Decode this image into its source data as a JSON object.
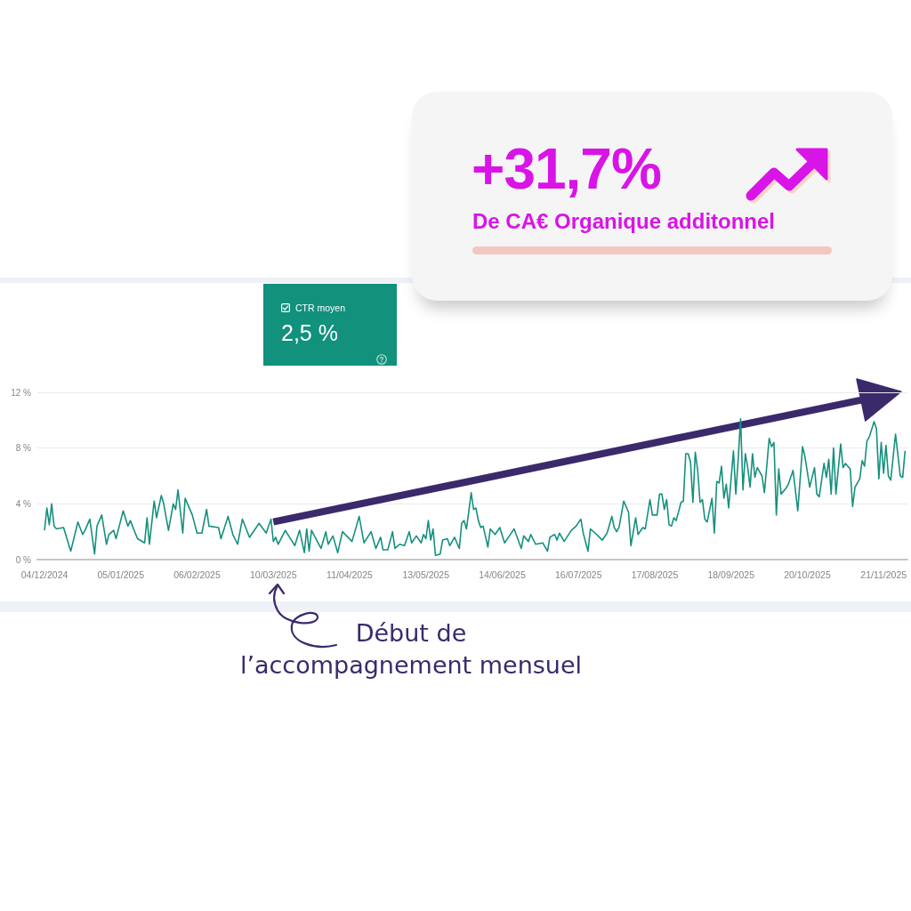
{
  "chart_data": [
    {
      "type": "other",
      "title": "+31,7%",
      "subtitle": "De CA€ Organique additonnel"
    },
    {
      "type": "line",
      "title": "CTR moyen",
      "annotations": [
        "2,5 %",
        "Début de\nl’accompagnement mensuel"
      ],
      "x": [
        "2024-12-04",
        "2024-12-05",
        "2024-12-06",
        "2024-12-07",
        "2024-12-08",
        "2024-12-09",
        "2024-12-12",
        "2024-12-15",
        "2024-12-18",
        "2024-12-20",
        "2024-12-21",
        "2024-12-23",
        "2024-12-25",
        "2024-12-26",
        "2024-12-28",
        "2024-12-30",
        "2024-12-31",
        "2025-01-02",
        "2025-01-03",
        "2025-01-06",
        "2025-01-08",
        "2025-01-09",
        "2025-01-12",
        "2025-01-15",
        "2025-01-16",
        "2025-01-17",
        "2025-01-19",
        "2025-01-20",
        "2025-01-22",
        "2025-01-23",
        "2025-01-25",
        "2025-01-27",
        "2025-01-28",
        "2025-01-29",
        "2025-01-31",
        "2025-02-01",
        "2025-02-04",
        "2025-02-06",
        "2025-02-08",
        "2025-02-10",
        "2025-02-11",
        "2025-02-15",
        "2025-02-16",
        "2025-02-19",
        "2025-02-21",
        "2025-02-23",
        "2025-02-25",
        "2025-02-28",
        "2025-03-04",
        "2025-03-07",
        "2025-03-09",
        "2025-03-10",
        "2025-03-11",
        "2025-03-12",
        "2025-03-15",
        "2025-03-19",
        "2025-03-21",
        "2025-03-23",
        "2025-03-24",
        "2025-03-25",
        "2025-03-26",
        "2025-03-30",
        "2025-04-01",
        "2025-04-02",
        "2025-04-04",
        "2025-04-06",
        "2025-04-08",
        "2025-04-12",
        "2025-04-15",
        "2025-04-17",
        "2025-04-20",
        "2025-04-22",
        "2025-04-24",
        "2025-04-25",
        "2025-04-27",
        "2025-04-29",
        "2025-04-30",
        "2025-05-02",
        "2025-05-04",
        "2025-05-06",
        "2025-05-07",
        "2025-05-09",
        "2025-05-11",
        "2025-05-12",
        "2025-05-13",
        "2025-05-14",
        "2025-05-15",
        "2025-05-16",
        "2025-05-17",
        "2025-05-19",
        "2025-05-20",
        "2025-05-22",
        "2025-05-23",
        "2025-05-25",
        "2025-05-27",
        "2025-05-28",
        "2025-05-29",
        "2025-05-30",
        "2025-06-01",
        "2025-06-02",
        "2025-06-03",
        "2025-06-04",
        "2025-06-05",
        "2025-06-06",
        "2025-06-08",
        "2025-06-09",
        "2025-06-11",
        "2025-06-13",
        "2025-06-15",
        "2025-06-17",
        "2025-06-19",
        "2025-06-22",
        "2025-06-23",
        "2025-06-25",
        "2025-06-26",
        "2025-06-28",
        "2025-07-01",
        "2025-07-03",
        "2025-07-04",
        "2025-07-06",
        "2025-07-07",
        "2025-07-08",
        "2025-07-10",
        "2025-07-13",
        "2025-07-15",
        "2025-07-17",
        "2025-07-18",
        "2025-07-20",
        "2025-07-21",
        "2025-07-23",
        "2025-07-26",
        "2025-07-28",
        "2025-07-30",
        "2025-07-31",
        "2025-08-01",
        "2025-08-02",
        "2025-08-04",
        "2025-08-06",
        "2025-08-07",
        "2025-08-09",
        "2025-08-10",
        "2025-08-12",
        "2025-08-13",
        "2025-08-15",
        "2025-08-16",
        "2025-08-18",
        "2025-08-19",
        "2025-08-20",
        "2025-08-21",
        "2025-08-22",
        "2025-08-23",
        "2025-08-24",
        "2025-08-25",
        "2025-08-26",
        "2025-08-28",
        "2025-08-29",
        "2025-08-30",
        "2025-08-31",
        "2025-09-01",
        "2025-09-02",
        "2025-09-03",
        "2025-09-04",
        "2025-09-05",
        "2025-09-06",
        "2025-09-07",
        "2025-09-08",
        "2025-09-10",
        "2025-09-11",
        "2025-09-12",
        "2025-09-13",
        "2025-09-14",
        "2025-09-15",
        "2025-09-16",
        "2025-09-17",
        "2025-09-19",
        "2025-09-20",
        "2025-09-21",
        "2025-09-22",
        "2025-09-23",
        "2025-09-24",
        "2025-09-25",
        "2025-09-26",
        "2025-09-27",
        "2025-09-28",
        "2025-09-29",
        "2025-10-01",
        "2025-10-02",
        "2025-10-04",
        "2025-10-05",
        "2025-10-06",
        "2025-10-07",
        "2025-10-08",
        "2025-10-09",
        "2025-10-11",
        "2025-10-12",
        "2025-10-14",
        "2025-10-16",
        "2025-10-18",
        "2025-10-19",
        "2025-10-21",
        "2025-10-23",
        "2025-10-24",
        "2025-10-25",
        "2025-10-27",
        "2025-10-28",
        "2025-10-29",
        "2025-10-30",
        "2025-10-31",
        "2025-11-01",
        "2025-11-03",
        "2025-11-04",
        "2025-11-05",
        "2025-11-07",
        "2025-11-08",
        "2025-11-09",
        "2025-11-11",
        "2025-11-12",
        "2025-11-13",
        "2025-11-14",
        "2025-11-15",
        "2025-11-17",
        "2025-11-18",
        "2025-11-19",
        "2025-11-20",
        "2025-11-21",
        "2025-11-22",
        "2025-11-23",
        "2025-11-24",
        "2025-11-26",
        "2025-11-28",
        "2025-11-29",
        "2025-11-30"
      ],
      "series": [
        {
          "color": "#15907e",
          "values": [
            2.1,
            3.7,
            2.5,
            4.0,
            2.4,
            2.2,
            2.3,
            0.6,
            2.7,
            1.8,
            2.1,
            2.9,
            0.4,
            2.4,
            3.2,
            1.1,
            1.8,
            2.1,
            1.5,
            3.5,
            2.4,
            2.8,
            1.5,
            1.2,
            3.0,
            1.1,
            4.2,
            3.0,
            4.6,
            4.0,
            2.1,
            4.0,
            3.6,
            5.0,
            1.9,
            4.4,
            3.2,
            1.9,
            1.9,
            3.6,
            2.4,
            2.3,
            1.5,
            3.1,
            1.8,
            1.1,
            2.9,
            1.6,
            2.6,
            1.9,
            2.9,
            1.3,
            1.6,
            1.1,
            2.1,
            1.0,
            2.1,
            0.5,
            2.2,
            0.6,
            2.1,
            0.8,
            2.0,
            1.1,
            1.7,
            0.5,
            2.0,
            1.3,
            3.1,
            1.2,
            2.0,
            0.8,
            1.6,
            0.7,
            0.7,
            2.0,
            0.8,
            1.1,
            1.0,
            2.0,
            1.2,
            1.7,
            1.2,
            1.8,
            1.5,
            2.8,
            1.4,
            2.2,
            0.3,
            0.4,
            1.4,
            1.5,
            1.0,
            1.6,
            0.8,
            2.6,
            2.8,
            2.2,
            4.8,
            3.6,
            3.7,
            2.8,
            2.3,
            2.4,
            0.9,
            2.2,
            1.8,
            2.3,
            1.2,
            1.7,
            2.2,
            0.8,
            1.7,
            1.3,
            1.8,
            1.1,
            1.2,
            0.6,
            1.6,
            1.8,
            1.4,
            1.9,
            1.3,
            2.1,
            2.4,
            2.9,
            1.9,
            0.6,
            2.2,
            1.9,
            1.4,
            1.9,
            3.1,
            2.3,
            2.0,
            2.3,
            4.2,
            3.4,
            1.0,
            3.0,
            1.8,
            2.3,
            2.2,
            4.3,
            3.2,
            3.2,
            4.7,
            4.7,
            3.6,
            4.3,
            2.5,
            2.4,
            3.0,
            2.8,
            4.1,
            4.2,
            7.6,
            7.6,
            7.0,
            4.1,
            7.7,
            6.4,
            4.1,
            4.3,
            2.9,
            2.7,
            4.4,
            1.9,
            5.6,
            5.5,
            6.7,
            4.4,
            5.4,
            3.7,
            7.8,
            4.7,
            7.2,
            10.1,
            5.0,
            7.6,
            6.6,
            5.2,
            7.6,
            5.9,
            6.6,
            6.0,
            4.8,
            8.7,
            8.1,
            8.4,
            3.2,
            6.5,
            4.7,
            5.1,
            5.4,
            6.4,
            3.5,
            8.1,
            7.4,
            5.2,
            6.6,
            4.7,
            4.5,
            6.9,
            5.9,
            7.2,
            4.7,
            8.0,
            4.7,
            8.3,
            6.6,
            6.9,
            6.5,
            3.8,
            5.2,
            5.8,
            7.1,
            6.7,
            8.5,
            8.8,
            9.9,
            9.4,
            5.8,
            8.4,
            6.2,
            8.2,
            6.0,
            5.7,
            9.0,
            6.0,
            5.9,
            7.8
          ]
        },
        {
          "color": "#3a2a6c",
          "x": [
            "2025-03-10",
            "2025-11-13"
          ],
          "values": [
            2.7,
            11.5
          ]
        }
      ],
      "xlim": [
        "2024-12-01",
        "2025-12-01"
      ],
      "xticks": [
        {
          "value": "2024-12-04",
          "label": "04/12/2024"
        },
        {
          "value": "2025-01-05",
          "label": "05/01/2025"
        },
        {
          "value": "2025-02-06",
          "label": "06/02/2025"
        },
        {
          "value": "2025-03-10",
          "label": "10/03/2025"
        },
        {
          "value": "2025-04-11",
          "label": "11/04/2025"
        },
        {
          "value": "2025-05-13",
          "label": "13/05/2025"
        },
        {
          "value": "2025-06-14",
          "label": "14/06/2025"
        },
        {
          "value": "2025-07-16",
          "label": "16/07/2025"
        },
        {
          "value": "2025-08-17",
          "label": "17/08/2025"
        },
        {
          "value": "2025-09-18",
          "label": "18/09/2025"
        },
        {
          "value": "2025-10-20",
          "label": "20/10/2025"
        },
        {
          "value": "2025-11-21",
          "label": "21/11/2025"
        }
      ],
      "ylim": [
        0,
        12
      ],
      "yticks": [
        {
          "value": 0,
          "label": "0 %"
        },
        {
          "value": 4,
          "label": "4 %"
        },
        {
          "value": 8,
          "label": "8 %"
        },
        {
          "value": 12,
          "label": "12 %"
        }
      ],
      "grid": "y"
    }
  ]
}
